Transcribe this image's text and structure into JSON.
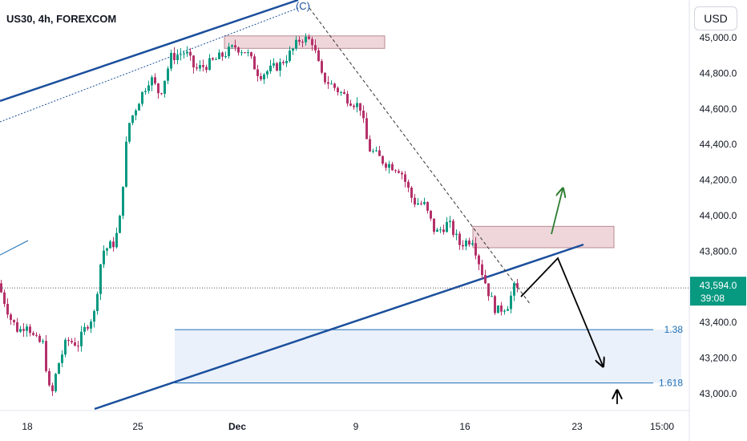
{
  "header": {
    "title": "US30, 4h, FOREXCOM"
  },
  "currency_button": {
    "label": "USD"
  },
  "price_tag": {
    "price": "43,594.0",
    "countdown": "39:08",
    "color": "#089981"
  },
  "colors": {
    "up": "#089981",
    "down": "#b5316a",
    "trendline": "#1b4f9c",
    "zone_fill": "#efd6db",
    "projection": "#1f6fb5",
    "arrow_up": "#2e7d32",
    "arrow_down": "#000000"
  },
  "chart_data": {
    "type": "candlestick",
    "title": "US30, 4h, FOREXCOM",
    "xlabel": "",
    "ylabel": "",
    "x_ticks": [
      "18",
      "25",
      "Dec",
      "9",
      "16",
      "23",
      "15:00"
    ],
    "y_ticks": [
      "43,000.0",
      "43,200.0",
      "43,400.0",
      "43,600.0",
      "43,800.0",
      "44,000.0",
      "44,200.0",
      "44,400.0",
      "44,600.0",
      "44,800.0",
      "45,000.0"
    ],
    "ylim": [
      42900,
      45050
    ],
    "wave_label": "(C)",
    "fib_levels": [
      {
        "label": "1.38",
        "value": 43360
      },
      {
        "label": "1.618",
        "value": 43060
      }
    ],
    "resistance_zone": [
      44940,
      45010
    ],
    "supply_zone": [
      43820,
      43940
    ],
    "last_price": 43594,
    "trend": "down"
  }
}
